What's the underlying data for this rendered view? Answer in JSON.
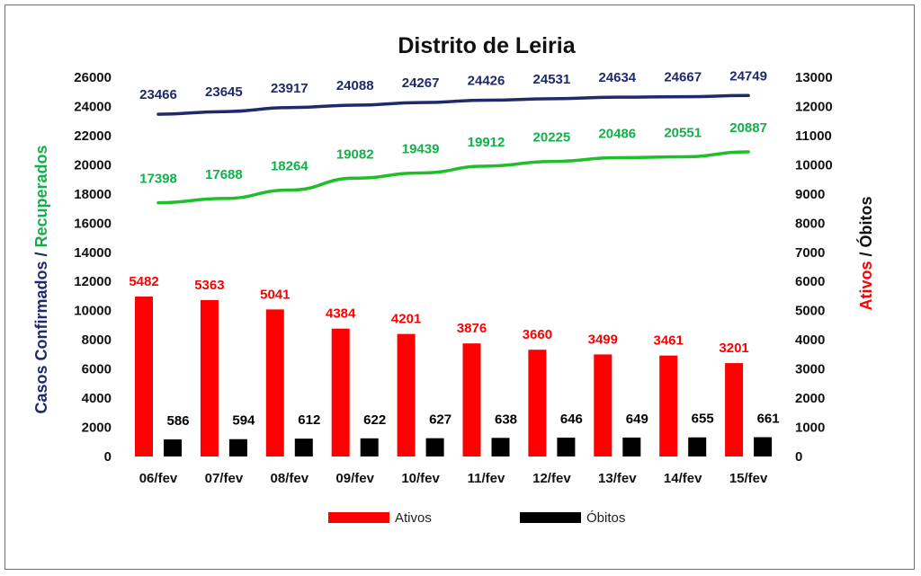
{
  "chart_data": {
    "type": "bar",
    "title": "Distrito de Leiria",
    "categories": [
      "06/fev",
      "07/fev",
      "08/fev",
      "09/fev",
      "10/fev",
      "11/fev",
      "12/fev",
      "13/fev",
      "14/fev",
      "15/fev"
    ],
    "left_axis": {
      "label_part1": "Casos Confirmados",
      "label_sep": " / ",
      "label_part2": "Recuperados",
      "range": [
        0,
        26000
      ],
      "ticks": [
        0,
        2000,
        4000,
        6000,
        8000,
        10000,
        12000,
        14000,
        16000,
        18000,
        20000,
        22000,
        24000,
        26000
      ]
    },
    "right_axis": {
      "label_part1": "Ativos",
      "label_sep": " / ",
      "label_part2": "Óbitos",
      "range": [
        0,
        13000
      ],
      "ticks": [
        0,
        1000,
        2000,
        3000,
        4000,
        5000,
        6000,
        7000,
        8000,
        9000,
        10000,
        11000,
        12000,
        13000
      ]
    },
    "series": [
      {
        "name": "",
        "kind": "line",
        "axis": "left",
        "color": "#1f2a6b",
        "label_color": "#1f2a6b",
        "values": [
          23466,
          23645,
          23917,
          24088,
          24267,
          24426,
          24531,
          24634,
          24667,
          24749
        ]
      },
      {
        "name": "",
        "kind": "line",
        "axis": "left",
        "color": "#1fbf2a",
        "label_color": "#11b04a",
        "values": [
          17398,
          17688,
          18264,
          19082,
          19439,
          19912,
          20225,
          20486,
          20551,
          20887
        ]
      },
      {
        "name": "Ativos",
        "kind": "bar",
        "axis": "right",
        "color": "#ff0000",
        "label_color": "#ff0000",
        "values": [
          5482,
          5363,
          5041,
          4384,
          4201,
          3876,
          3660,
          3499,
          3461,
          3201
        ]
      },
      {
        "name": "Óbitos",
        "kind": "bar",
        "axis": "right",
        "color": "#000000",
        "label_color": "#000000",
        "values": [
          586,
          594,
          612,
          622,
          627,
          638,
          646,
          649,
          655,
          661
        ]
      }
    ],
    "legend": [
      {
        "name": "Ativos",
        "color": "#ff0000"
      },
      {
        "name": "Óbitos",
        "color": "#000000"
      }
    ],
    "legend_position": "bottom-center",
    "colors": {
      "confirmados": "#1f2a6b",
      "recuperados": "#11b04a",
      "ativos": "#ff0000",
      "obitos": "#000000"
    },
    "grid": false
  }
}
